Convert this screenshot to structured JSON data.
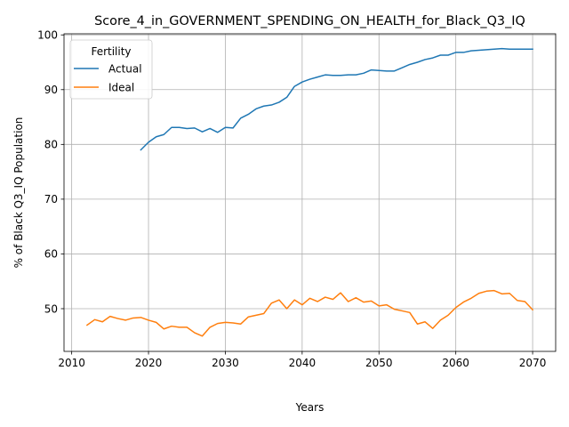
{
  "chart_data": {
    "type": "line",
    "title": "Score_4_in_GOVERNMENT_SPENDING_ON_HEALTH_for_Black_Q3_IQ",
    "xlabel": "Years",
    "ylabel": "% of Black Q3_IQ Population",
    "xlim": [
      2009,
      2073
    ],
    "ylim": [
      42.2,
      100.2
    ],
    "xticks": [
      2010,
      2020,
      2030,
      2040,
      2050,
      2060,
      2070
    ],
    "yticks": [
      50,
      60,
      70,
      80,
      90,
      100
    ],
    "grid": true,
    "legend": {
      "title": "Fertility",
      "placement": "top-left"
    },
    "series": [
      {
        "name": "Actual",
        "color": "#1f77b4",
        "x": [
          2019,
          2020,
          2021,
          2022,
          2023,
          2024,
          2025,
          2026,
          2027,
          2028,
          2029,
          2030,
          2031,
          2032,
          2033,
          2034,
          2035,
          2036,
          2037,
          2038,
          2039,
          2040,
          2041,
          2042,
          2043,
          2044,
          2045,
          2046,
          2047,
          2048,
          2049,
          2050,
          2051,
          2052,
          2053,
          2054,
          2055,
          2056,
          2057,
          2058,
          2059,
          2060,
          2061,
          2062,
          2063,
          2064,
          2065,
          2066,
          2067,
          2068,
          2069,
          2070
        ],
        "values": [
          79.0,
          80.4,
          81.4,
          81.8,
          83.1,
          83.1,
          82.9,
          83.0,
          82.3,
          82.9,
          82.2,
          83.1,
          83.0,
          84.8,
          85.5,
          86.5,
          87.0,
          87.2,
          87.7,
          88.6,
          90.6,
          91.4,
          91.9,
          92.3,
          92.7,
          92.6,
          92.6,
          92.7,
          92.7,
          93.0,
          93.6,
          93.5,
          93.4,
          93.4,
          94.0,
          94.6,
          95.0,
          95.5,
          95.8,
          96.3,
          96.3,
          96.8,
          96.8,
          97.1,
          97.2,
          97.3,
          97.4,
          97.5,
          97.4,
          97.4,
          97.4,
          97.4
        ]
      },
      {
        "name": "Ideal",
        "color": "#ff7f0e",
        "x": [
          2012,
          2013,
          2014,
          2015,
          2016,
          2017,
          2018,
          2019,
          2020,
          2021,
          2022,
          2023,
          2024,
          2025,
          2026,
          2027,
          2028,
          2029,
          2030,
          2031,
          2032,
          2033,
          2034,
          2035,
          2036,
          2037,
          2038,
          2039,
          2040,
          2041,
          2042,
          2043,
          2044,
          2045,
          2046,
          2047,
          2048,
          2049,
          2050,
          2051,
          2052,
          2053,
          2054,
          2055,
          2056,
          2057,
          2058,
          2059,
          2060,
          2061,
          2062,
          2063,
          2064,
          2065,
          2066,
          2067,
          2068,
          2069,
          2070
        ],
        "values": [
          47.0,
          48.0,
          47.6,
          48.6,
          48.2,
          47.9,
          48.3,
          48.4,
          47.9,
          47.5,
          46.3,
          46.8,
          46.6,
          46.6,
          45.6,
          45.0,
          46.6,
          47.3,
          47.5,
          47.4,
          47.2,
          48.5,
          48.8,
          49.1,
          51.0,
          51.6,
          50.0,
          51.6,
          50.7,
          51.9,
          51.3,
          52.1,
          51.7,
          52.9,
          51.3,
          52.0,
          51.2,
          51.4,
          50.5,
          50.7,
          49.9,
          49.6,
          49.3,
          47.2,
          47.6,
          46.4,
          47.9,
          48.8,
          50.2,
          51.2,
          51.9,
          52.8,
          53.2,
          53.3,
          52.7,
          52.8,
          51.5,
          51.3,
          49.8
        ]
      }
    ]
  }
}
